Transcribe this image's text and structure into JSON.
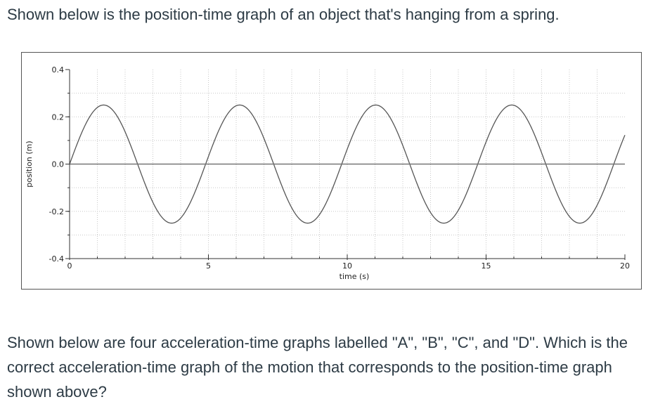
{
  "intro_text": "Shown below is the position-time graph of an object that's hanging from a spring.",
  "question_text": "Shown below are four acceleration-time graphs labelled \"A\", \"B\", \"C\", and \"D\". Which is the correct acceleration-time graph of the motion that corresponds to the position-time graph shown above?",
  "chart_data": {
    "type": "line",
    "title": "",
    "xlabel": "time (s)",
    "ylabel": "position (m)",
    "xlim": [
      0,
      20
    ],
    "ylim": [
      -0.4,
      0.4
    ],
    "x_ticks": [
      0,
      5,
      10,
      15,
      20
    ],
    "y_ticks": [
      -0.4,
      -0.2,
      0.0,
      0.2,
      0.4
    ],
    "x_tick_labels": [
      "0",
      "5",
      "10",
      "15",
      "20"
    ],
    "y_tick_labels": [
      "-0.4",
      "-0.2",
      "0.0",
      "0.2",
      "0.4"
    ],
    "grid": true,
    "series": [
      {
        "color": "#555555",
        "model": "sine",
        "amplitude": 0.25,
        "period": 4.9,
        "offset": 0.0,
        "x": [
          0,
          1.225,
          2.45,
          3.675,
          4.9,
          6.125,
          7.35,
          8.575,
          9.8,
          11.025,
          12.25,
          13.475,
          14.7,
          15.925,
          17.15,
          18.375,
          19.6,
          20
        ],
        "y": [
          0,
          0.25,
          0,
          -0.25,
          0,
          0.25,
          0,
          -0.25,
          0,
          0.25,
          0,
          -0.25,
          0,
          0.25,
          0,
          -0.25,
          0,
          0.13
        ]
      },
      {
        "color": "#777777",
        "model": "constant",
        "x": [
          0,
          20
        ],
        "y": [
          0,
          0
        ]
      }
    ]
  }
}
